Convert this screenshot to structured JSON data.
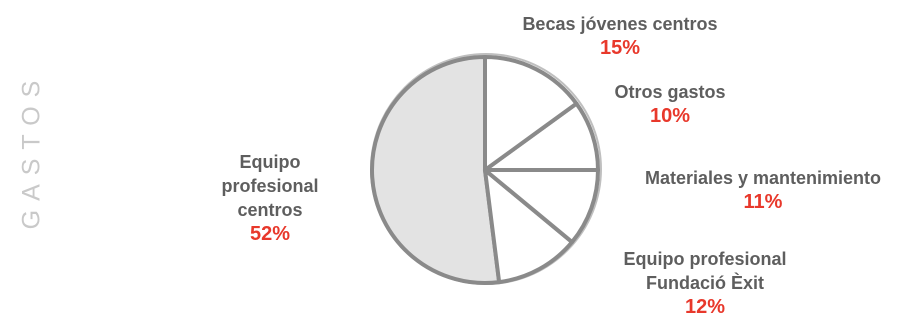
{
  "title": "GASTOS",
  "colors": {
    "outline": "#8a8a8a",
    "highlight_fill": "#e3e3e3",
    "slice_fill": "#ffffff",
    "label_text": "#5e5e5e",
    "percent_text": "#e8382b"
  },
  "chart_data": {
    "type": "pie",
    "title": "GASTOS",
    "slices": [
      {
        "label": "Equipo profesional centros",
        "label_lines": [
          "Equipo",
          "profesional",
          "centros"
        ],
        "value": 52,
        "display": "52%",
        "highlight": true
      },
      {
        "label": "Equipo profesional Fundació Èxit",
        "label_lines": [
          "Equipo profesional",
          "Fundació Èxit"
        ],
        "value": 12,
        "display": "12%",
        "highlight": false
      },
      {
        "label": "Materiales y mantenimiento",
        "label_lines": [
          "Materiales y mantenimiento"
        ],
        "value": 11,
        "display": "11%",
        "highlight": false
      },
      {
        "label": "Otros gastos",
        "label_lines": [
          "Otros gastos"
        ],
        "value": 10,
        "display": "10%",
        "highlight": false
      },
      {
        "label": "Becas jóvenes centros",
        "label_lines": [
          "Becas jóvenes centros"
        ],
        "value": 15,
        "display": "15%",
        "highlight": false
      }
    ]
  }
}
